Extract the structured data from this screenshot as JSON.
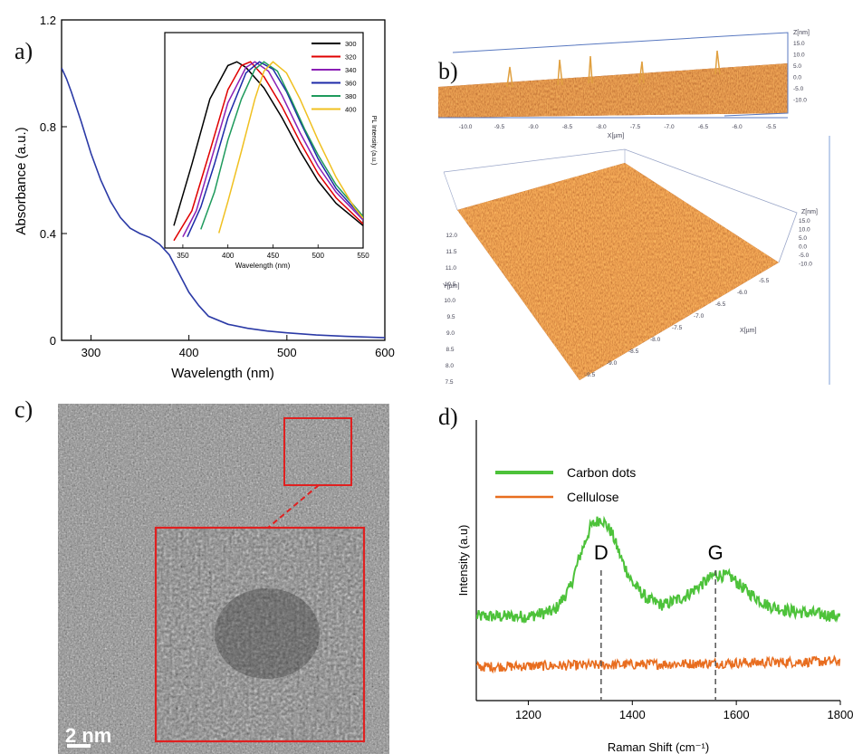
{
  "panel_labels": {
    "a": "a)",
    "b": "b)",
    "c": "c)",
    "d": "d)"
  },
  "chart_data": [
    {
      "panel": "a",
      "type": "line",
      "xlabel": "Wavelength (nm)",
      "ylabel": "Absorbance (a.u.)",
      "xlim": [
        270,
        600
      ],
      "ylim": [
        0,
        1.2
      ],
      "x_ticks": [
        "300",
        "400",
        "500",
        "600"
      ],
      "y_ticks": [
        "0",
        "0.4",
        "0.8",
        "1.2"
      ],
      "color": "#2b3aa6",
      "series": [
        {
          "x": [
            270,
            275,
            280,
            290,
            300,
            310,
            320,
            330,
            340,
            350,
            360,
            370,
            380,
            390,
            400,
            410,
            420,
            440,
            460,
            480,
            500,
            530,
            560,
            600
          ],
          "y": [
            1.02,
            0.98,
            0.93,
            0.82,
            0.7,
            0.6,
            0.52,
            0.46,
            0.42,
            0.4,
            0.385,
            0.36,
            0.32,
            0.25,
            0.18,
            0.13,
            0.09,
            0.06,
            0.045,
            0.035,
            0.028,
            0.02,
            0.015,
            0.01
          ]
        }
      ]
    },
    {
      "panel": "a-inset",
      "type": "line",
      "xlabel": "Wavelength (nm)",
      "ylabel": "PL Intensity (a.u.)",
      "xlim": [
        330,
        550
      ],
      "ylim": [
        0,
        1.05
      ],
      "x_ticks": [
        "350",
        "400",
        "450",
        "500",
        "550"
      ],
      "legend_position": "top-right",
      "series": [
        {
          "name": "300",
          "color": "#000000",
          "x": [
            340,
            360,
            380,
            400,
            410,
            420,
            440,
            460,
            480,
            500,
            520,
            550
          ],
          "y": [
            0.12,
            0.45,
            0.8,
            0.98,
            1.0,
            0.97,
            0.86,
            0.7,
            0.52,
            0.36,
            0.24,
            0.12
          ]
        },
        {
          "name": "320",
          "color": "#e00000",
          "x": [
            340,
            360,
            380,
            400,
            415,
            425,
            440,
            460,
            480,
            500,
            520,
            550
          ],
          "y": [
            0.04,
            0.2,
            0.52,
            0.85,
            0.98,
            1.0,
            0.92,
            0.76,
            0.57,
            0.4,
            0.27,
            0.13
          ]
        },
        {
          "name": "340",
          "color": "#8b1fb5",
          "x": [
            350,
            365,
            380,
            400,
            420,
            430,
            445,
            460,
            480,
            500,
            520,
            550
          ],
          "y": [
            0.06,
            0.2,
            0.45,
            0.78,
            0.97,
            1.0,
            0.95,
            0.82,
            0.62,
            0.44,
            0.3,
            0.15
          ]
        },
        {
          "name": "360",
          "color": "#1d2aa8",
          "x": [
            355,
            370,
            385,
            400,
            420,
            435,
            450,
            465,
            480,
            500,
            520,
            550
          ],
          "y": [
            0.06,
            0.22,
            0.45,
            0.7,
            0.94,
            1.0,
            0.96,
            0.84,
            0.68,
            0.48,
            0.32,
            0.16
          ]
        },
        {
          "name": "380",
          "color": "#1e9a5c",
          "x": [
            370,
            385,
            400,
            415,
            430,
            440,
            455,
            470,
            485,
            500,
            520,
            550
          ],
          "y": [
            0.1,
            0.3,
            0.58,
            0.8,
            0.96,
            1.0,
            0.95,
            0.8,
            0.64,
            0.5,
            0.34,
            0.17
          ]
        },
        {
          "name": "400",
          "color": "#f0c020",
          "x": [
            390,
            400,
            415,
            430,
            440,
            450,
            465,
            480,
            500,
            520,
            540,
            550
          ],
          "y": [
            0.08,
            0.25,
            0.52,
            0.8,
            0.95,
            1.0,
            0.94,
            0.8,
            0.58,
            0.38,
            0.22,
            0.16
          ]
        }
      ]
    },
    {
      "panel": "d",
      "type": "line",
      "xlabel": "Raman Shift (cm⁻¹)",
      "ylabel": "Intensity (a.u)",
      "xlim": [
        1100,
        1800
      ],
      "x_ticks": [
        "1200",
        "1400",
        "1600",
        "1800"
      ],
      "legend_position": "top-left",
      "annotations": [
        {
          "text": "D",
          "x": 1340
        },
        {
          "text": "G",
          "x": 1560
        }
      ],
      "series": [
        {
          "name": "Carbon dots",
          "color": "#4dc23a",
          "x": [
            1100,
            1150,
            1200,
            1250,
            1280,
            1300,
            1320,
            1340,
            1360,
            1380,
            1400,
            1430,
            1460,
            1500,
            1530,
            1560,
            1590,
            1620,
            1660,
            1700,
            1750,
            1800
          ],
          "y": [
            0.3,
            0.3,
            0.3,
            0.32,
            0.4,
            0.52,
            0.62,
            0.65,
            0.6,
            0.5,
            0.42,
            0.36,
            0.34,
            0.37,
            0.41,
            0.45,
            0.44,
            0.39,
            0.34,
            0.32,
            0.31,
            0.3
          ]
        },
        {
          "name": "Cellulose",
          "color": "#e86d1f",
          "x": [
            1100,
            1800
          ],
          "y": [
            0.12,
            0.14
          ]
        }
      ]
    }
  ],
  "surface_b": {
    "top": {
      "x_ticks": [
        "-10.0",
        "-9.5",
        "-9.0",
        "-8.5",
        "-8.0",
        "-7.5",
        "-7.0",
        "-6.5",
        "-6.0",
        "-5.5"
      ],
      "x_label": "X[µm]",
      "z_label": "Z[nm]",
      "z_ticks": [
        "15.0",
        "10.0",
        "5.0",
        "0.0",
        "-5.0",
        "-10.0"
      ]
    },
    "bottom": {
      "y_label": "Y[µm]",
      "y_ticks": [
        "12.0",
        "11.5",
        "11.0",
        "10.5",
        "10.0",
        "9.5",
        "9.0",
        "8.5",
        "8.0",
        "7.5"
      ],
      "x_label": "X[µm]",
      "x_ticks": [
        "-5.5",
        "-6.0",
        "-6.5",
        "-7.0",
        "-7.5",
        "-8.0",
        "-8.5",
        "-9.0",
        "-9.5"
      ],
      "z_label": "Z[nm]",
      "z_ticks": [
        "15.0",
        "10.0",
        "5.0",
        "0.0",
        "-5.0",
        "-10.0"
      ]
    }
  },
  "tem_c": {
    "scale_bar": "2 nm"
  }
}
